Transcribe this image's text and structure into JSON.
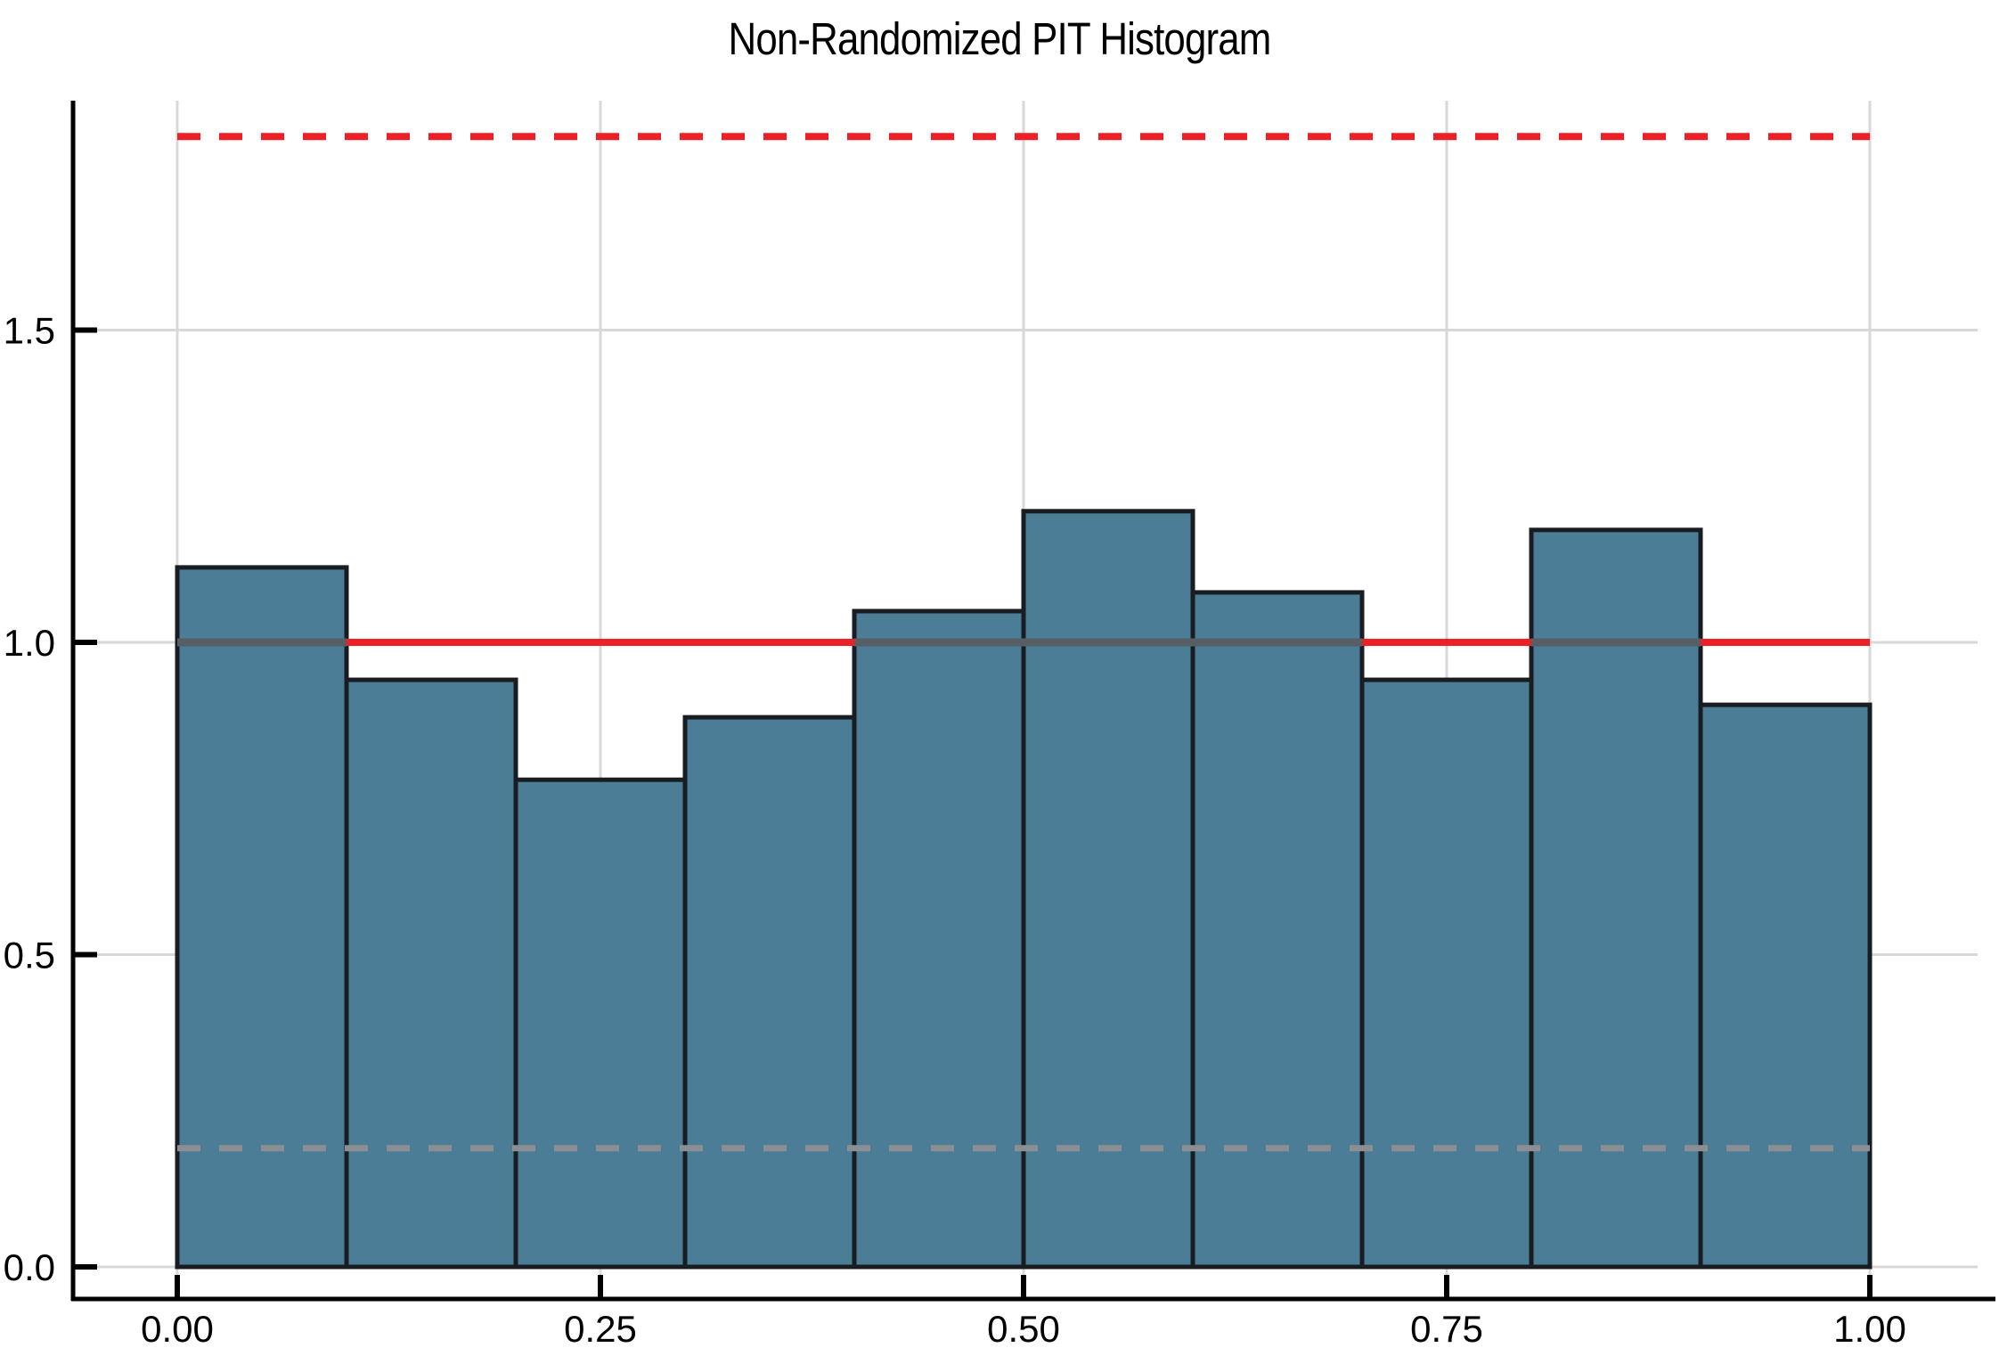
{
  "chart_data": {
    "type": "bar",
    "subtype": "histogram",
    "title": "Non-Randomized PIT Histogram",
    "xlabel": "",
    "ylabel": "",
    "bin_edges": [
      0.0,
      0.1,
      0.2,
      0.3,
      0.4,
      0.5,
      0.6,
      0.7,
      0.8,
      0.9,
      1.0
    ],
    "values": [
      1.12,
      0.94,
      0.78,
      0.88,
      1.05,
      1.21,
      1.08,
      0.94,
      1.18,
      0.9
    ],
    "x_ticks": {
      "values": [
        0.0,
        0.25,
        0.5,
        0.75,
        1.0
      ],
      "labels": [
        "0.00",
        "0.25",
        "0.50",
        "0.75",
        "1.00"
      ]
    },
    "y_ticks": {
      "values": [
        0.0,
        0.5,
        1.0,
        1.5
      ],
      "labels": [
        "0.0",
        "0.5",
        "1.0",
        "1.5"
      ]
    },
    "xlim": [
      -0.062,
      1.072
    ],
    "ylim": [
      -0.051,
      1.864
    ],
    "grid": true,
    "legend_position": "none",
    "reference_lines": [
      {
        "name": "uniform-density-line",
        "y": 1.0,
        "style": "solid",
        "color": "#EC2026",
        "width": 8
      },
      {
        "name": "upper-consistency-band",
        "y": 1.81,
        "style": "dashed",
        "color": "#EC2026",
        "width": 8
      },
      {
        "name": "lower-consistency-band",
        "y": 0.19,
        "style": "dashed",
        "color": "#8B8F93",
        "width": 7
      }
    ],
    "colors": {
      "bar_fill": "#4B7D96",
      "bar_edge": "#191D21",
      "grid": "#D8D8D8",
      "axis": "#000000",
      "tick_label": "#000000",
      "title": "#000000",
      "overlay_stripe": "#565E66",
      "background": "#FFFFFF"
    }
  }
}
